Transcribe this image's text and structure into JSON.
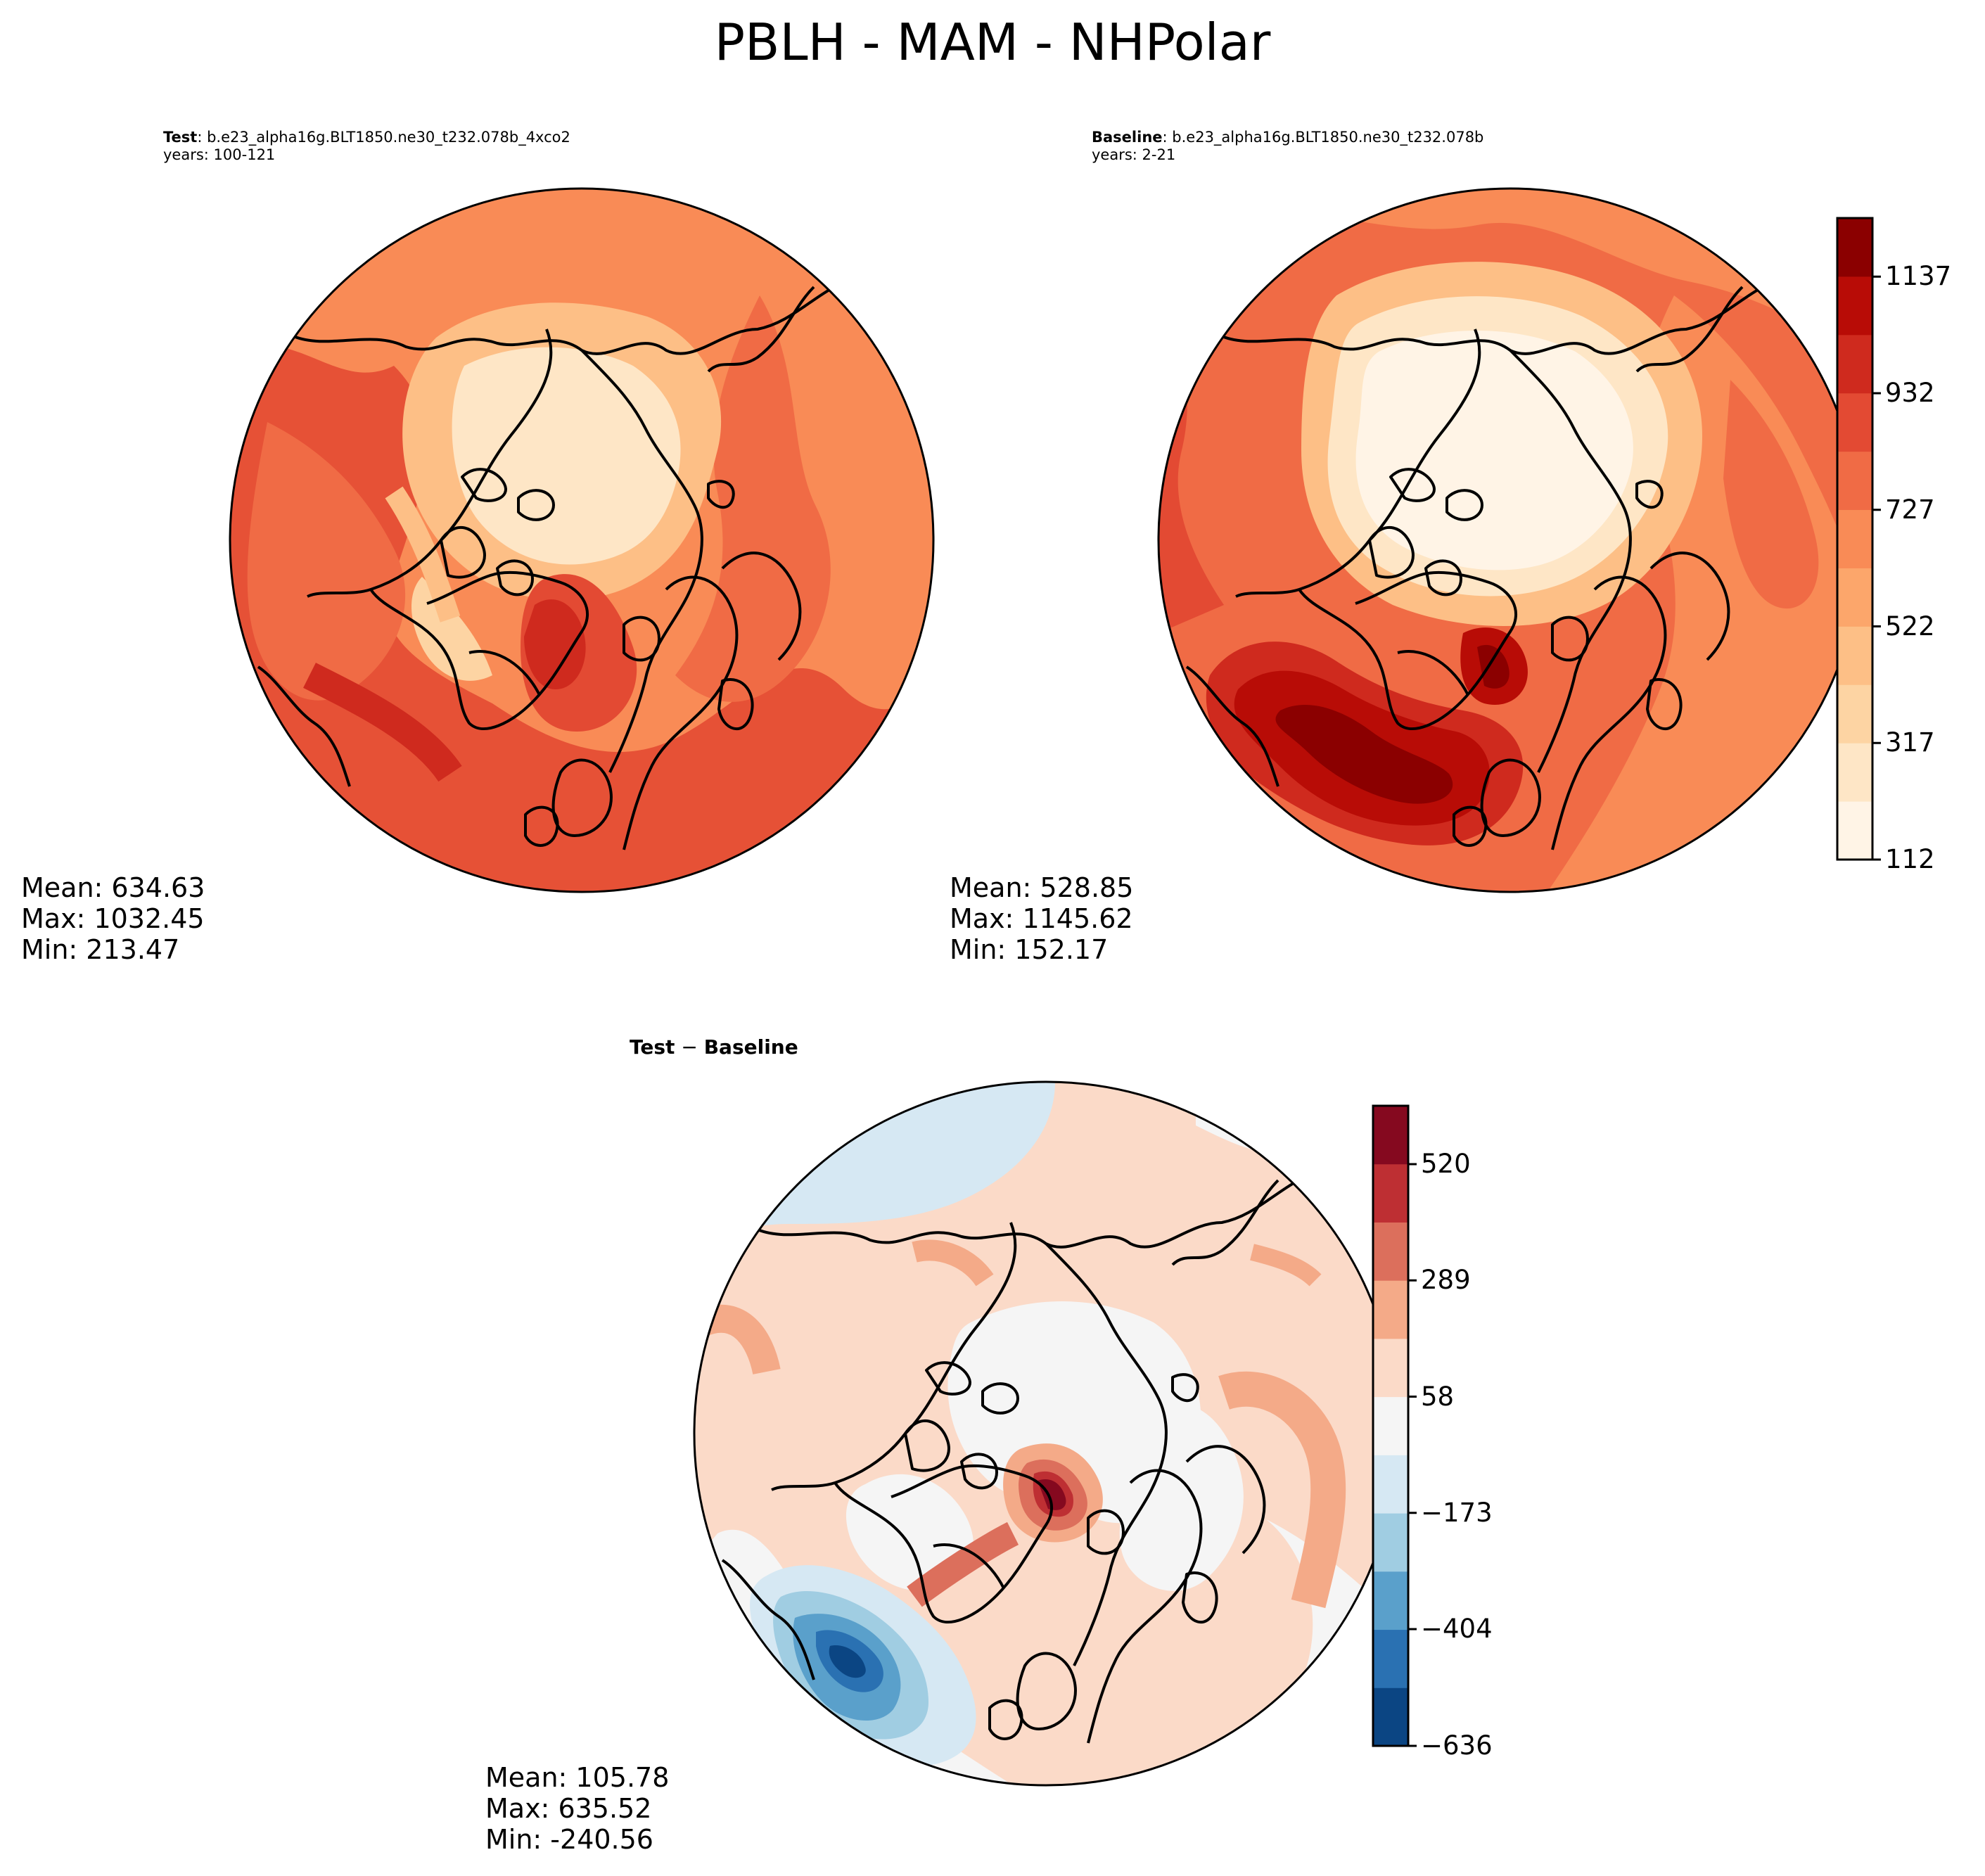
{
  "figure": {
    "title": "PBLH - MAM - NHPolar"
  },
  "chart_data": [
    {
      "type": "heatmap",
      "panel": "test",
      "label_bold": "Test",
      "label_sep": ":",
      "case": "b.e23_alpha16g.BLT1850.ne30_t232.078b_4xco2",
      "years": "years: 100-121",
      "projection": "north-polar-stereographic",
      "stats": {
        "mean": "Mean: 634.63",
        "max": "Max: 1032.45",
        "min": "Min: 213.47"
      },
      "colormap": "OrRd-style (shared with baseline)"
    },
    {
      "type": "heatmap",
      "panel": "baseline",
      "label_bold": "Baseline",
      "label_sep": ":",
      "case": "b.e23_alpha16g.BLT1850.ne30_t232.078b",
      "years": "years: 2-21",
      "projection": "north-polar-stereographic",
      "stats": {
        "mean": "Mean: 528.85",
        "max": "Max: 1145.62",
        "min": "Min: 152.17"
      },
      "colorbar": {
        "ticks": [
          "1137",
          "932",
          "727",
          "522",
          "317",
          "112"
        ],
        "range": [
          112,
          1240
        ],
        "colors": [
          "#fff4e6",
          "#fee6c6",
          "#fdd4a3",
          "#fdbf86",
          "#fca66b",
          "#f98b56",
          "#f06b45",
          "#e34a33",
          "#cf2a1e",
          "#b80c06",
          "#8b0000"
        ]
      }
    },
    {
      "type": "heatmap",
      "panel": "difference",
      "label_a": "Test",
      "label_op": "−",
      "label_b": "Baseline",
      "projection": "north-polar-stereographic",
      "stats": {
        "mean": "Mean: 105.78",
        "max": "Max: 635.52",
        "min": "Min: -240.56"
      },
      "colorbar": {
        "ticks": [
          "520",
          "289",
          "58",
          "−173",
          "−404",
          "−636"
        ],
        "range": [
          -636,
          636
        ],
        "colors": [
          "#0b4583",
          "#2a71b2",
          "#5aa0cb",
          "#a0cde2",
          "#d6e8f3",
          "#f5f5f5",
          "#fbdac8",
          "#f4aa88",
          "#dc6f5c",
          "#be2f33",
          "#85091f"
        ]
      }
    }
  ]
}
